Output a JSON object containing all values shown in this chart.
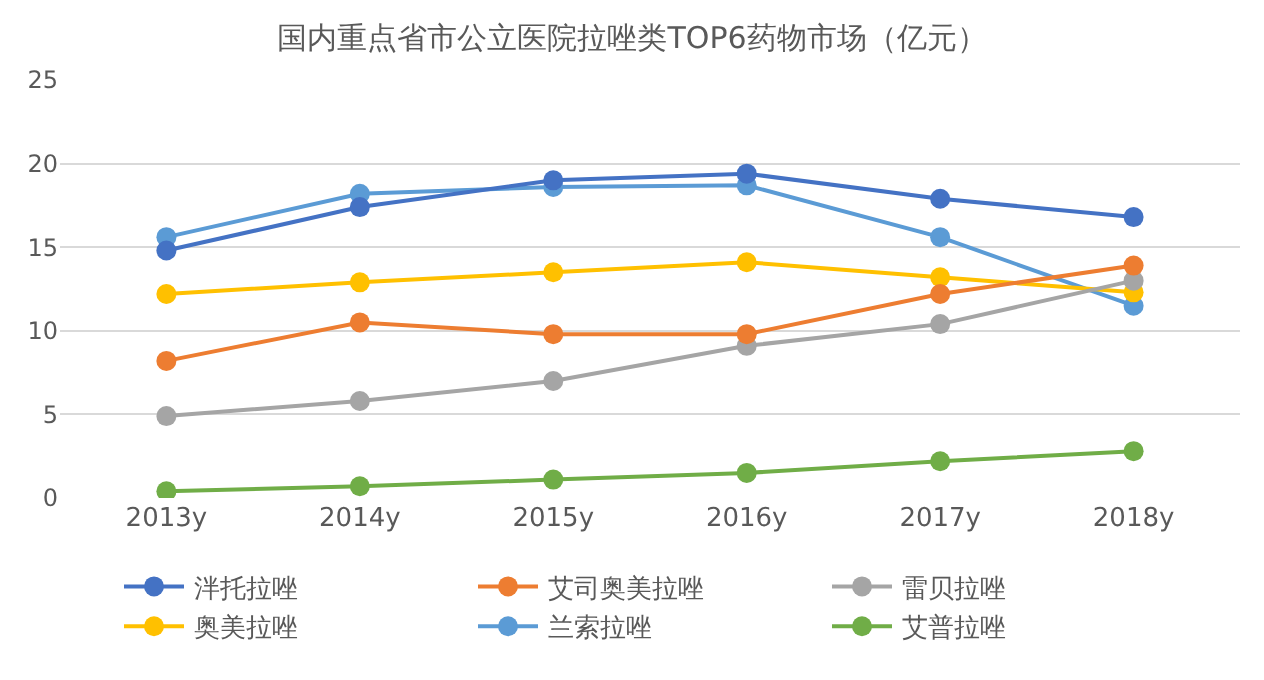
{
  "chart_data": {
    "type": "line",
    "title": "国内重点省市公立医院拉唑类TOP6药物市场（亿元）",
    "categories": [
      "2013y",
      "2014y",
      "2015y",
      "2016y",
      "2017y",
      "2018y"
    ],
    "series": [
      {
        "name": "泮托拉唑",
        "color": "#4472c4",
        "values": [
          14.8,
          17.4,
          19.0,
          19.4,
          17.9,
          16.8
        ]
      },
      {
        "name": "艾司奥美拉唑",
        "color": "#ed7d31",
        "values": [
          8.2,
          10.5,
          9.8,
          9.8,
          12.2,
          13.9
        ]
      },
      {
        "name": "雷贝拉唑",
        "color": "#a5a5a5",
        "values": [
          4.9,
          5.8,
          7.0,
          9.1,
          10.4,
          13.0
        ]
      },
      {
        "name": "奥美拉唑",
        "color": "#ffc000",
        "values": [
          12.2,
          12.9,
          13.5,
          14.1,
          13.2,
          12.3
        ]
      },
      {
        "name": "兰索拉唑",
        "color": "#5b9bd5",
        "values": [
          15.6,
          18.2,
          18.6,
          18.7,
          15.6,
          11.5
        ]
      },
      {
        "name": "艾普拉唑",
        "color": "#70ad47",
        "values": [
          0.4,
          0.7,
          1.1,
          1.5,
          2.2,
          2.8
        ]
      }
    ],
    "ylim": [
      0,
      25
    ],
    "yticks": [
      0,
      5,
      10,
      15,
      20,
      25
    ],
    "grid": "y",
    "legend": "bottom",
    "marker": "circle",
    "line_style": "solid"
  }
}
